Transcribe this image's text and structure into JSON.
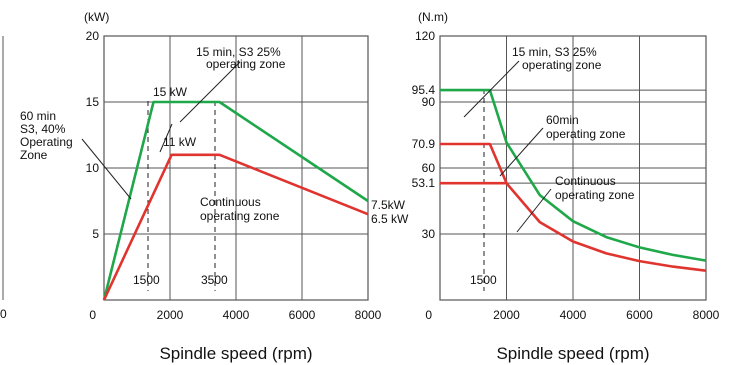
{
  "chart_data": [
    {
      "type": "line",
      "ylabel": "(kW)",
      "xlabel": "Spindle speed (rpm)",
      "xlim": [
        0,
        8000
      ],
      "ylim": [
        0,
        20
      ],
      "x_ticks": [
        "0",
        "2000",
        "4000",
        "6000",
        "8000"
      ],
      "y_ticks": [
        "5",
        "10",
        "15",
        "20"
      ],
      "grid": true,
      "colors": {
        "s3_25": "#1fa84a",
        "continuous": "#e0342f"
      },
      "series": [
        {
          "key": "s3_25",
          "color": "#1fa84a",
          "x": [
            0,
            1500,
            3500,
            8000
          ],
          "y": [
            0,
            15,
            15,
            7.5
          ]
        },
        {
          "key": "continuous",
          "color": "#e0342f",
          "x": [
            0,
            2050,
            3500,
            8000
          ],
          "y": [
            0,
            11,
            11,
            6.5
          ]
        }
      ],
      "annotations": {
        "s3_line1": "15 min, S3 25%",
        "s3_line2": "operating zone",
        "peak_15": "15 kW",
        "peak_11": "11 kW",
        "left_line1": "60 min",
        "left_line2": "S3, 40%",
        "left_line3": "Operating",
        "left_line4": "Zone",
        "cont_line1": "Continuous",
        "cont_line2": "operating zone",
        "end_green": "7.5kW",
        "end_red": "6.5 kW",
        "mark_1500": "1500",
        "mark_3500": "3500"
      }
    },
    {
      "type": "line",
      "ylabel": "(N.m)",
      "xlabel": "Spindle speed (rpm)",
      "xlim": [
        0,
        8000
      ],
      "ylim": [
        0,
        120
      ],
      "x_ticks": [
        "0",
        "2000",
        "4000",
        "6000",
        "8000"
      ],
      "y_ticks": [
        "30",
        "53.1",
        "60",
        "70.9",
        "90",
        "95.4",
        "120"
      ],
      "grid": true,
      "colors": {
        "s3_25": "#1fa84a",
        "min60": "#e0342f",
        "continuous": "#e0342f"
      },
      "series": [
        {
          "key": "s3_25",
          "color": "#1fa84a",
          "x": [
            0,
            1500,
            2000,
            3000,
            4000,
            5000,
            6000,
            7000,
            8000
          ],
          "y": [
            95.4,
            95.4,
            71.6,
            47.7,
            35.8,
            28.6,
            23.9,
            20.5,
            17.9
          ]
        },
        {
          "key": "min60",
          "color": "#e0342f",
          "x": [
            0,
            1500,
            2000
          ],
          "y": [
            70.9,
            70.9,
            53.2
          ]
        },
        {
          "key": "continuous",
          "color": "#e0342f",
          "x": [
            0,
            1500,
            2000,
            3000,
            4000,
            5000,
            6000,
            7000,
            8000
          ],
          "y": [
            53.1,
            53.1,
            53.1,
            35.4,
            26.6,
            21.2,
            17.7,
            15.2,
            13.3
          ]
        }
      ],
      "annotations": {
        "s3_line1": "15 min, S3 25%",
        "s3_line2": "operating zone",
        "min60_line1": "60min",
        "min60_line2": "operating zone",
        "cont_line1": "Continuous",
        "cont_line2": "operating zone",
        "mark_1500": "1500"
      }
    }
  ]
}
